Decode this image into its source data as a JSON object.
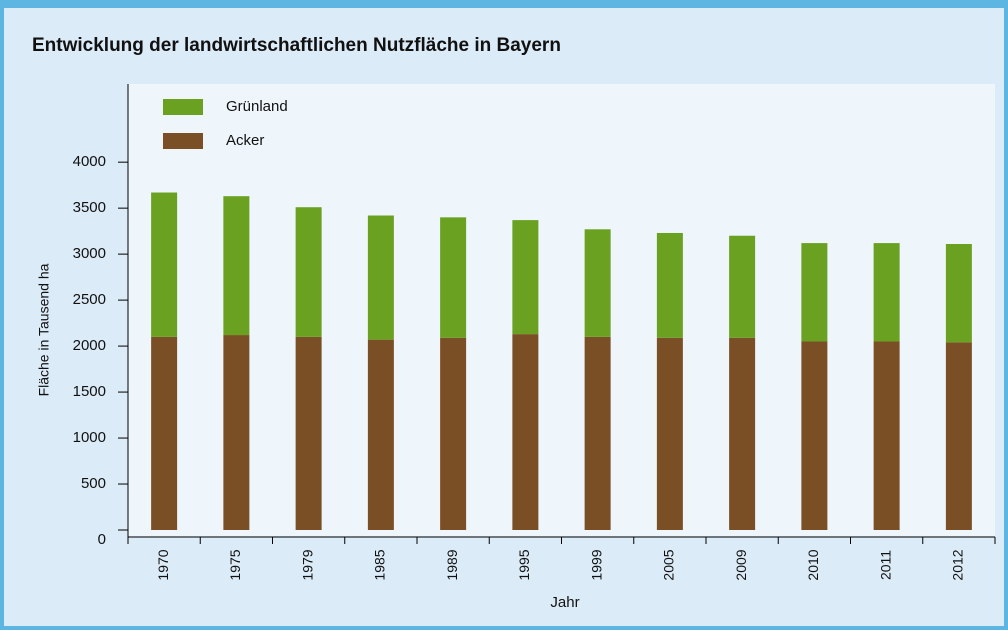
{
  "chart_data": {
    "type": "bar",
    "stacked": true,
    "title": "Entwicklung der landwirtschaftlichen Nutzfläche in Bayern",
    "y_label": "Fläche in Tausend ha",
    "x_label": "Jahr",
    "categories": [
      "1970",
      "1975",
      "1979",
      "1985",
      "1989",
      "1995",
      "1999",
      "2005",
      "2009",
      "2010",
      "2011",
      "2012"
    ],
    "series": [
      {
        "name": "Acker",
        "color": "#7b4f25",
        "values": [
          2100,
          2120,
          2100,
          2070,
          2090,
          2130,
          2100,
          2090,
          2090,
          2050,
          2050,
          2040
        ]
      },
      {
        "name": "Grünland",
        "color": "#6aa121",
        "values": [
          1570,
          1510,
          1410,
          1350,
          1310,
          1240,
          1170,
          1140,
          1110,
          1070,
          1070,
          1070
        ]
      }
    ],
    "ylim": [
      0,
      4850
    ],
    "yticks": [
      0,
      500,
      1000,
      1500,
      2000,
      2500,
      3000,
      3500,
      4000
    ]
  }
}
